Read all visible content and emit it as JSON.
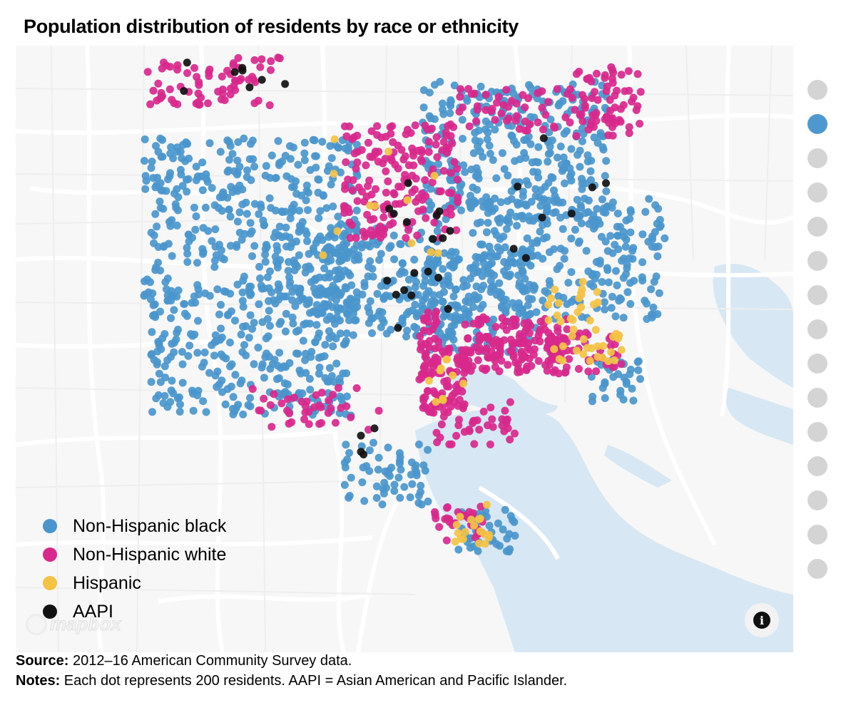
{
  "title": "Population distribution of residents by race or ethnicity",
  "legend": [
    {
      "label": "Non-Hispanic black",
      "color": "#4a96cc"
    },
    {
      "label": "Non-Hispanic white",
      "color": "#d8288c"
    },
    {
      "label": "Hispanic",
      "color": "#f4c244"
    },
    {
      "label": "AAPI",
      "color": "#111111"
    }
  ],
  "map": {
    "attribution": "mapbox",
    "info_icon": "info-icon",
    "water_color": "#d7e7f3",
    "road_color": "#ffffff",
    "land_color": "#f7f7f7"
  },
  "nav": {
    "count": 15,
    "active_index": 1
  },
  "footer": {
    "source_label": "Source:",
    "source_text": "2012–16 American Community Survey data.",
    "notes_label": "Notes:",
    "notes_text": "Each dot represents 200 residents. AAPI = Asian American and Pacific Islander."
  }
}
